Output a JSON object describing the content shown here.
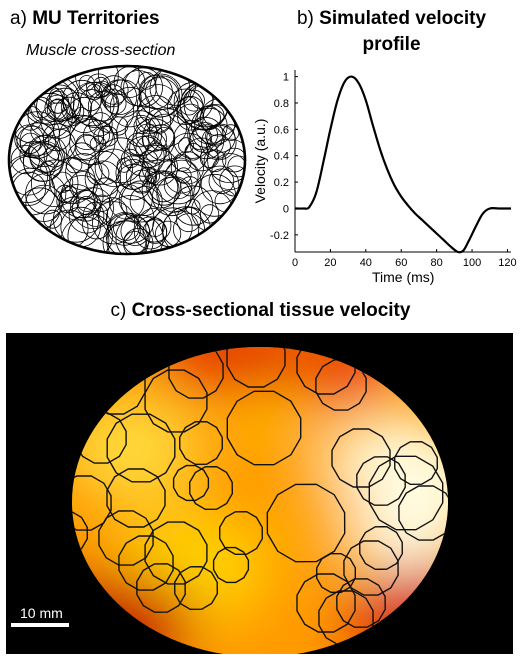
{
  "panel_a": {
    "letter": "a)",
    "title": "MU Territories",
    "subtitle": "Muscle cross-section"
  },
  "panel_b": {
    "letter": "b)",
    "title_line1": "Simulated velocity",
    "title_line2": "profile"
  },
  "panel_c": {
    "letter": "c)",
    "title": "Cross-sectional tissue velocity",
    "scale_bar_label": "10 mm"
  },
  "chart_data": {
    "type": "line",
    "title": "Simulated velocity profile",
    "xlabel": "Time (ms)",
    "ylabel": "Velocity (a.u.)",
    "xlim": [
      0,
      122
    ],
    "ylim": [
      -0.33,
      1.05
    ],
    "xticks": [
      "0",
      "20",
      "40",
      "60",
      "80",
      "100",
      "120"
    ],
    "yticks": [
      "-0.2",
      "0",
      "0.2",
      "0.4",
      "0.6",
      "0.8",
      "1"
    ],
    "grid": false,
    "series": [
      {
        "x": [
          0,
          5,
          8,
          12,
          16,
          20,
          24,
          28,
          32,
          36,
          40,
          44,
          48,
          52,
          56,
          60,
          64,
          68,
          72,
          76,
          80,
          84,
          88,
          92,
          95,
          98,
          102,
          106,
          110,
          115,
          122
        ],
        "y": [
          0,
          0,
          0.01,
          0.12,
          0.35,
          0.6,
          0.82,
          0.96,
          1.0,
          0.95,
          0.82,
          0.63,
          0.45,
          0.3,
          0.18,
          0.09,
          0.02,
          -0.04,
          -0.09,
          -0.14,
          -0.19,
          -0.24,
          -0.29,
          -0.33,
          -0.32,
          -0.25,
          -0.14,
          -0.04,
          0,
          0,
          0
        ]
      }
    ]
  },
  "colors": {
    "heatmap_hot": "#fffde0",
    "heatmap_mid": "#ffd000",
    "heatmap_low": "#dc1800",
    "background": "#000000",
    "outline": "#000000"
  }
}
